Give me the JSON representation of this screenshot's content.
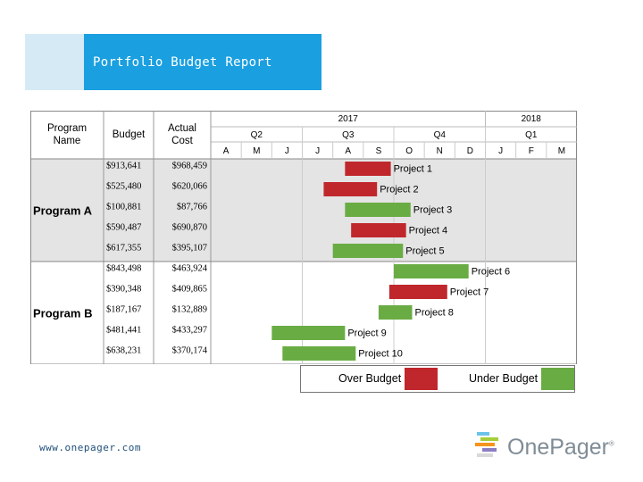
{
  "slide": {
    "title": "Portfolio Budget Report",
    "footer_url": "www.onepager.com"
  },
  "logo": {
    "text": "OnePager",
    "mark": "®"
  },
  "colors": {
    "over_budget": "#c0272d",
    "under_budget": "#6aac44",
    "title_band": "#1a9fe0",
    "row_shade": "#e4e4e4"
  },
  "table": {
    "headers": {
      "program_name": [
        "Program",
        "Name"
      ],
      "budget": "Budget",
      "actual_cost": [
        "Actual",
        "Cost"
      ]
    }
  },
  "timeline": {
    "years": [
      {
        "label": "2017",
        "start": 0,
        "end": 9
      },
      {
        "label": "2018",
        "start": 9,
        "end": 12
      }
    ],
    "quarters": [
      {
        "label": "Q2",
        "start": 0,
        "end": 3
      },
      {
        "label": "Q3",
        "start": 3,
        "end": 6
      },
      {
        "label": "Q4",
        "start": 6,
        "end": 9
      },
      {
        "label": "Q1",
        "start": 9,
        "end": 12
      }
    ],
    "months": [
      "A",
      "M",
      "J",
      "J",
      "A",
      "S",
      "O",
      "N",
      "D",
      "J",
      "F",
      "M"
    ]
  },
  "legend": {
    "over_label": "Over Budget",
    "under_label": "Under Budget"
  },
  "chart_data": {
    "type": "gantt",
    "groups": [
      {
        "name": "Program A",
        "projects": [
          {
            "name": "Project 1",
            "budget": "$913,641",
            "actual": "$968,459",
            "status": "over",
            "start": 4.4,
            "end": 5.9
          },
          {
            "name": "Project 2",
            "budget": "$525,480",
            "actual": "$620,066",
            "status": "over",
            "start": 3.7,
            "end": 5.45
          },
          {
            "name": "Project 3",
            "budget": "$100,881",
            "actual": "$87,766",
            "status": "under",
            "start": 4.4,
            "end": 6.55
          },
          {
            "name": "Project 4",
            "budget": "$590,487",
            "actual": "$690,870",
            "status": "over",
            "start": 4.6,
            "end": 6.4
          },
          {
            "name": "Project 5",
            "budget": "$617,355",
            "actual": "$395,107",
            "status": "under",
            "start": 4.0,
            "end": 6.3
          }
        ]
      },
      {
        "name": "Program B",
        "projects": [
          {
            "name": "Project 6",
            "budget": "$843,498",
            "actual": "$463,924",
            "status": "under",
            "start": 6.0,
            "end": 8.45
          },
          {
            "name": "Project 7",
            "budget": "$390,348",
            "actual": "$409,865",
            "status": "over",
            "start": 5.85,
            "end": 7.75
          },
          {
            "name": "Project 8",
            "budget": "$187,167",
            "actual": "$132,889",
            "status": "under",
            "start": 5.5,
            "end": 6.6
          },
          {
            "name": "Project 9",
            "budget": "$481,441",
            "actual": "$433,297",
            "status": "under",
            "start": 2.0,
            "end": 4.4
          },
          {
            "name": "Project 10",
            "budget": "$638,231",
            "actual": "$370,174",
            "status": "under",
            "start": 2.35,
            "end": 4.75
          }
        ]
      }
    ]
  }
}
